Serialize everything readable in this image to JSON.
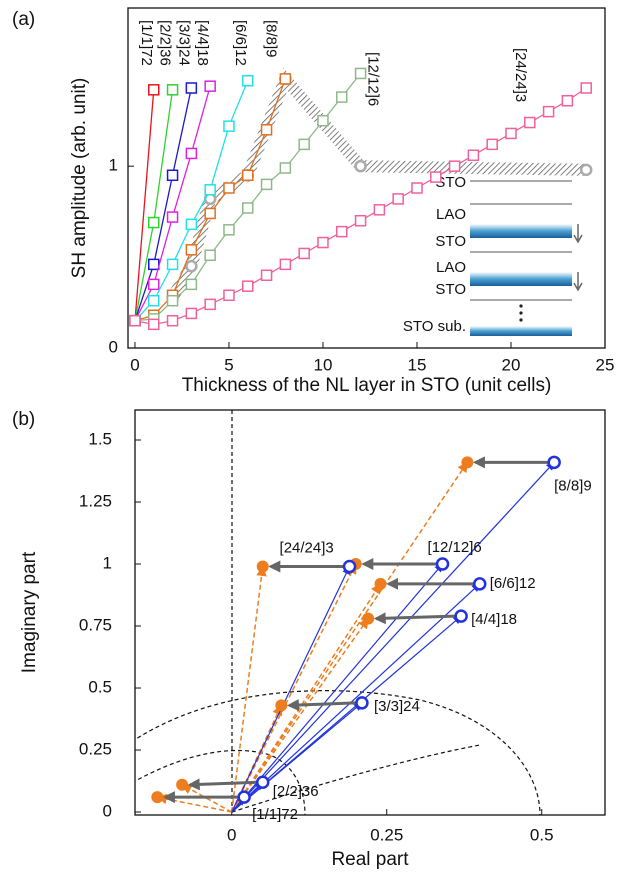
{
  "chart_data": [
    {
      "type": "line",
      "panel_label": "(a)",
      "xlabel": "Thickness of the NL layer in STO (unit cells)",
      "ylabel": "SH amplitude (arb. unit)",
      "xlim": [
        -0.37,
        25
      ],
      "ylim": [
        0,
        1.87
      ],
      "xticks": [
        0,
        5,
        10,
        15,
        20,
        25
      ],
      "yticks": [
        0,
        1
      ],
      "series": [
        {
          "name": "[1/1]72",
          "color": "#e8141e",
          "x": [
            0,
            1
          ],
          "values": [
            0.15,
            1.42
          ]
        },
        {
          "name": "[2/2]36",
          "color": "#2fd22f",
          "x": [
            0,
            1,
            2
          ],
          "values": [
            0.15,
            0.69,
            1.42
          ]
        },
        {
          "name": "[3/3]24",
          "color": "#1a1ac8",
          "x": [
            0,
            1,
            2,
            3
          ],
          "values": [
            0.15,
            0.46,
            0.95,
            1.43
          ]
        },
        {
          "name": "[4/4]18",
          "color": "#e020e0",
          "x": [
            0,
            1,
            2,
            3,
            4
          ],
          "values": [
            0.15,
            0.35,
            0.72,
            1.07,
            1.44
          ]
        },
        {
          "name": "[6/6]12",
          "color": "#20e0e8",
          "x": [
            0,
            1,
            2,
            3,
            4,
            5,
            6
          ],
          "values": [
            0.15,
            0.26,
            0.46,
            0.68,
            0.87,
            1.22,
            1.47
          ]
        },
        {
          "name": "[8/8]9",
          "color": "#e0701e",
          "x": [
            0,
            1,
            2,
            3,
            4,
            5,
            6,
            7,
            8
          ],
          "values": [
            0.15,
            0.18,
            0.29,
            0.54,
            0.74,
            0.88,
            0.95,
            1.2,
            1.48
          ]
        },
        {
          "name": "[12/12]6",
          "color": "#8fb88a",
          "x": [
            0,
            1,
            2,
            3,
            4,
            5,
            6,
            7,
            8,
            9,
            10,
            11,
            12
          ],
          "values": [
            0.15,
            0.16,
            0.26,
            0.35,
            0.51,
            0.65,
            0.77,
            0.9,
            0.99,
            1.12,
            1.25,
            1.38,
            1.51
          ]
        },
        {
          "name": "[24/24]3",
          "color": "#f0609a",
          "x": [
            0,
            1,
            2,
            3,
            4,
            5,
            6,
            7,
            8,
            9,
            10,
            11,
            12,
            13,
            14,
            15,
            16,
            17,
            18,
            19,
            20,
            21,
            22,
            23,
            24
          ],
          "values": [
            0.15,
            0.13,
            0.15,
            0.19,
            0.24,
            0.29,
            0.34,
            0.4,
            0.46,
            0.52,
            0.58,
            0.64,
            0.7,
            0.76,
            0.82,
            0.88,
            0.94,
            1.0,
            1.06,
            1.12,
            1.18,
            1.24,
            1.3,
            1.36,
            1.43
          ]
        },
        {
          "color": "#aaaaaa",
          "marker": "circle",
          "x": [
            2,
            3,
            4,
            6,
            8,
            12,
            24
          ],
          "values": [
            0.28,
            0.45,
            0.82,
            0.95,
            1.48,
            1.0,
            0.98
          ]
        }
      ],
      "inset_labels": [
        "STO",
        "LAO",
        "STO",
        "LAO",
        "STO",
        "STO sub."
      ]
    },
    {
      "type": "scatter",
      "panel_label": "(b)",
      "xlabel": "Real part",
      "ylabel": "Imaginary part",
      "xlim": [
        -0.156,
        0.602
      ],
      "ylim": [
        -0.012,
        1.621
      ],
      "xticks": [
        0,
        0.25,
        0.5
      ],
      "yticks": [
        0,
        0.25,
        0.5,
        0.75,
        1,
        1.25,
        1.5
      ],
      "point_labels": [
        "[1/1]72",
        "[2/2]36",
        "[3/3]24",
        "[4/4]18",
        "[6/6]12",
        "[8/8]9",
        "[12/12]6",
        "[24/24]3"
      ],
      "series": [
        {
          "color": "#2233dd",
          "marker": "open-circle",
          "x": [
            0.02,
            0.05,
            0.21,
            0.37,
            0.4,
            0.52,
            0.34,
            0.19
          ],
          "values": [
            0.06,
            0.12,
            0.44,
            0.79,
            0.92,
            1.41,
            1.0,
            0.99
          ]
        },
        {
          "color": "#ee7d1f",
          "marker": "filled-circle",
          "x": [
            -0.12,
            -0.08,
            0.08,
            0.22,
            0.24,
            0.38,
            0.2,
            0.05
          ],
          "values": [
            0.06,
            0.11,
            0.43,
            0.78,
            0.92,
            1.41,
            1.0,
            0.99
          ]
        }
      ]
    }
  ]
}
